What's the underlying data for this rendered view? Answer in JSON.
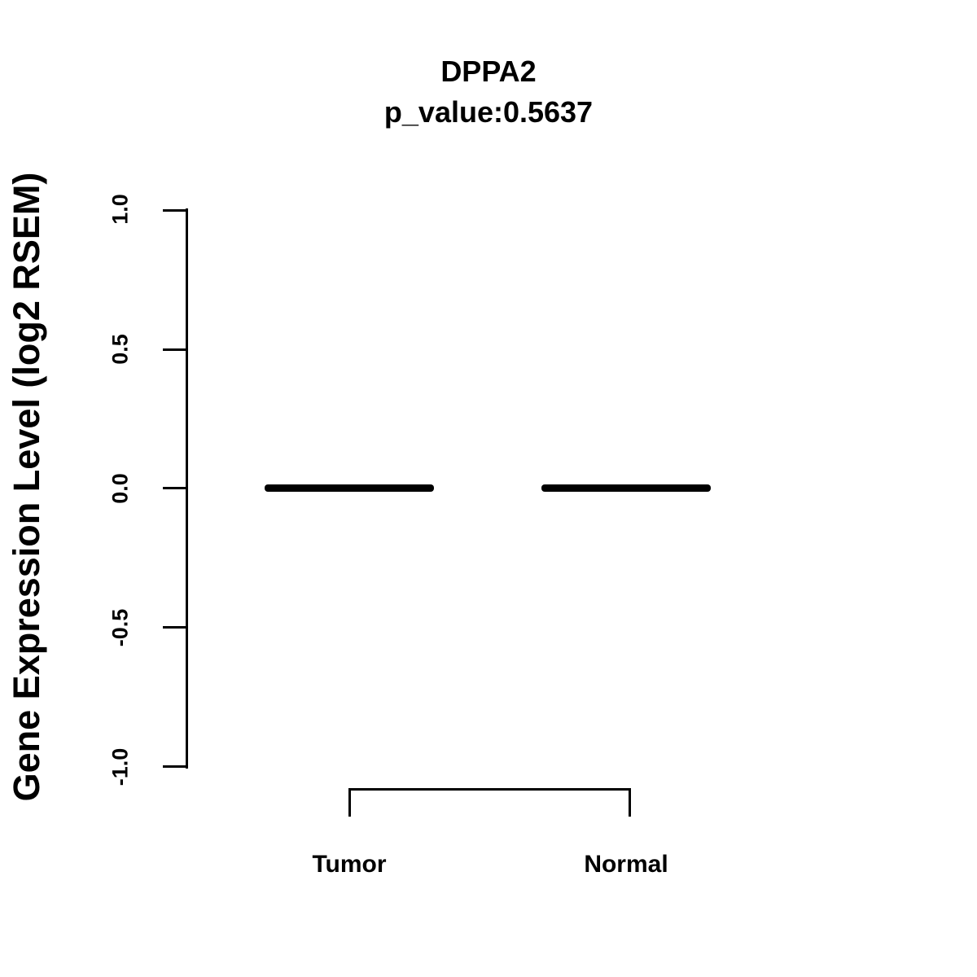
{
  "chart": {
    "title": "DPPA2",
    "subtitle": "p_value:0.5637",
    "ylabel": "Gene Expression Level (log2 RSEM)",
    "yticks": [
      {
        "label": "1.0"
      },
      {
        "label": "0.5"
      },
      {
        "label": "0.0"
      },
      {
        "label": "-0.5"
      },
      {
        "label": "-1.0"
      }
    ],
    "groups": [
      {
        "label": "Tumor"
      },
      {
        "label": "Normal"
      }
    ]
  },
  "chart_data": {
    "type": "boxplot",
    "title": "DPPA2",
    "subtitle": "p_value:0.5637",
    "p_value": 0.5637,
    "xlabel": "",
    "ylabel": "Gene Expression Level (log2 RSEM)",
    "categories": [
      "Tumor",
      "Normal"
    ],
    "series": [
      {
        "name": "Tumor",
        "min": 0.0,
        "q1": 0.0,
        "median": 0.0,
        "q3": 0.0,
        "max": 0.0
      },
      {
        "name": "Normal",
        "min": 0.0,
        "q1": 0.0,
        "median": 0.0,
        "q3": 0.0,
        "max": 0.0
      }
    ],
    "ylim": [
      -1.0,
      1.0
    ],
    "ytick_values": [
      1.0,
      0.5,
      0.0,
      -0.5,
      -1.0
    ],
    "grid": false,
    "legend": "none",
    "annotations": [
      "comparison bracket connecting Tumor and Normal below the axis"
    ],
    "colors": {
      "foreground": "#000000",
      "background": "#ffffff"
    }
  }
}
